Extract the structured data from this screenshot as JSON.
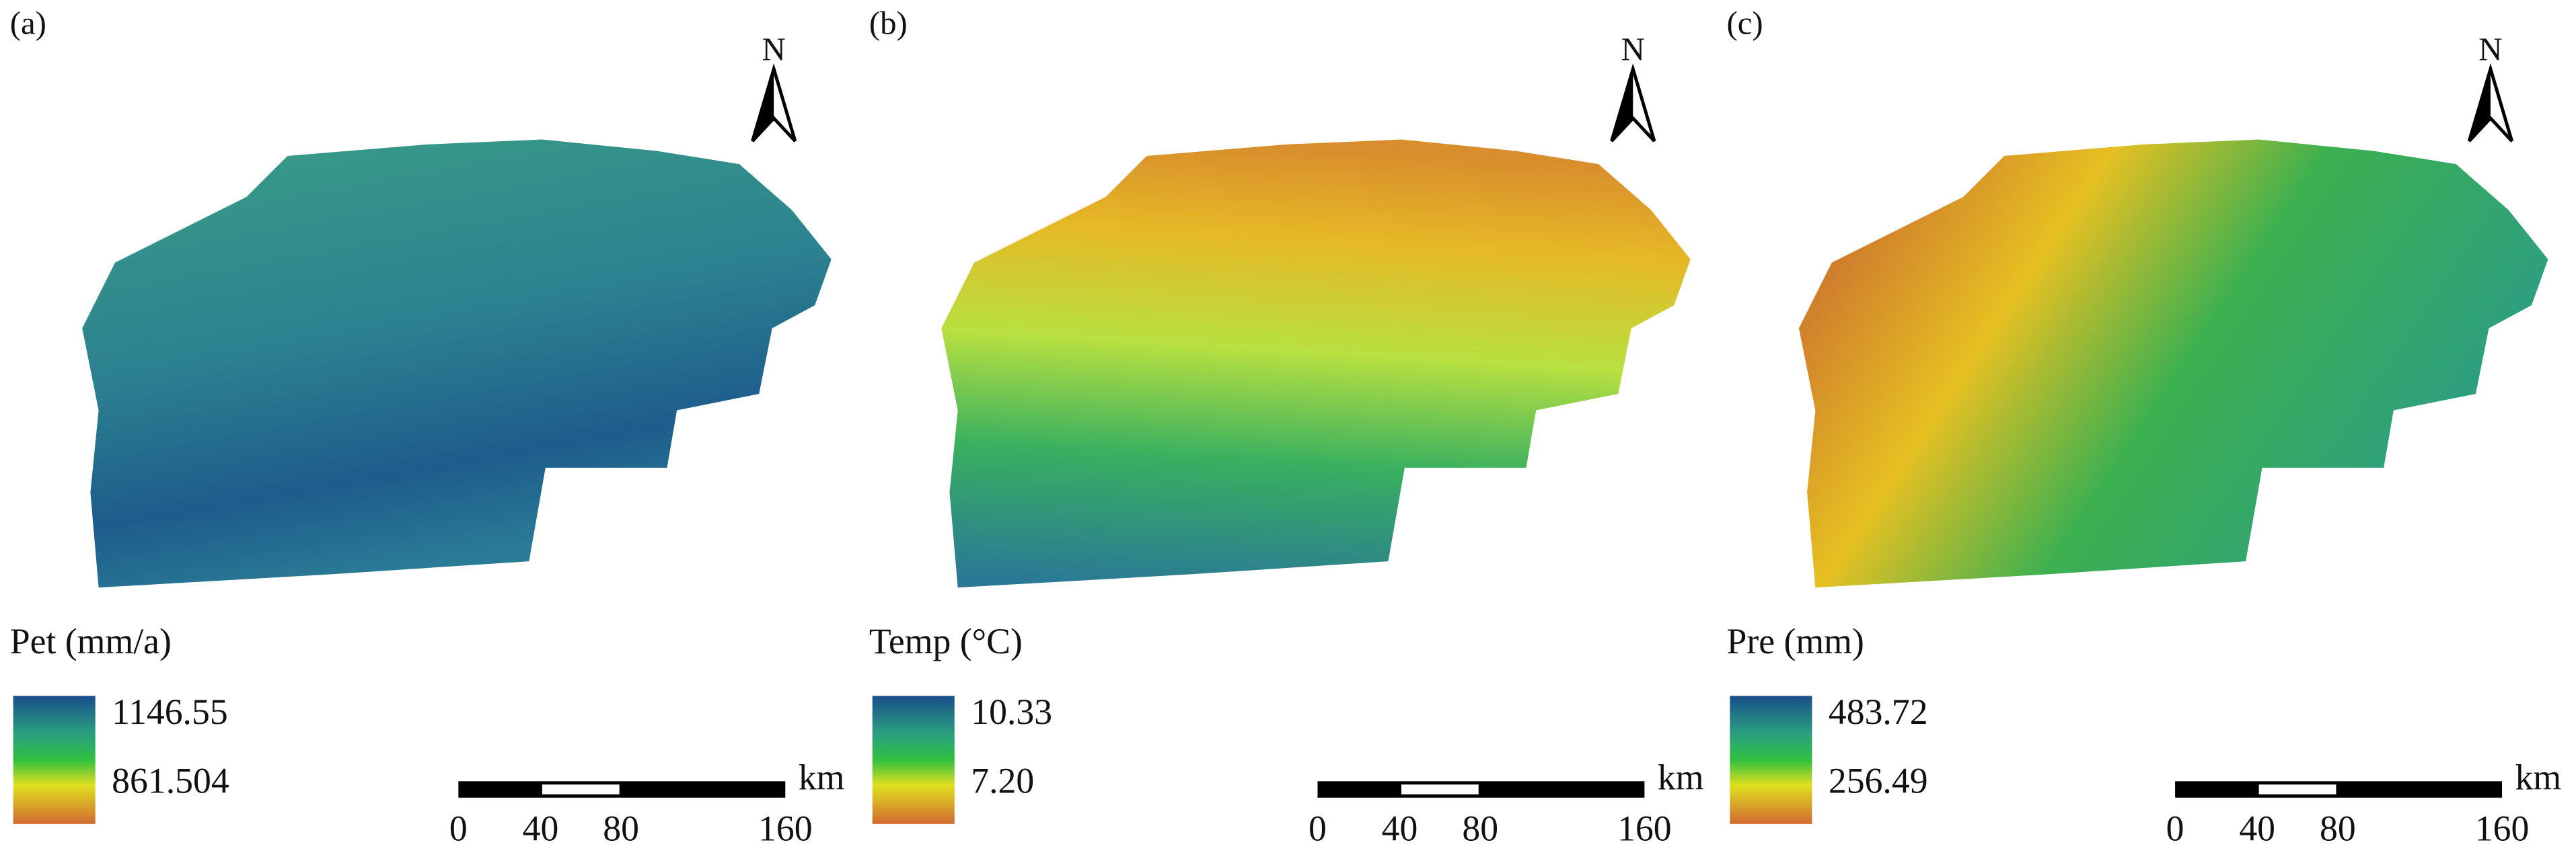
{
  "panels": [
    {
      "label": "(a)",
      "legend_title": "Pet (mm/a)",
      "legend_max": "1146.55",
      "legend_min": "861.504"
    },
    {
      "label": "(b)",
      "legend_title": "Temp (°C)",
      "legend_max": "10.33",
      "legend_min": "7.20"
    },
    {
      "label": "(c)",
      "legend_title": "Pre  (mm)",
      "legend_max": "483.72",
      "legend_min": "256.49"
    }
  ],
  "north": "N",
  "scale_bar": {
    "ticks": [
      "0",
      "40",
      "80",
      "160"
    ],
    "unit": "km"
  }
}
